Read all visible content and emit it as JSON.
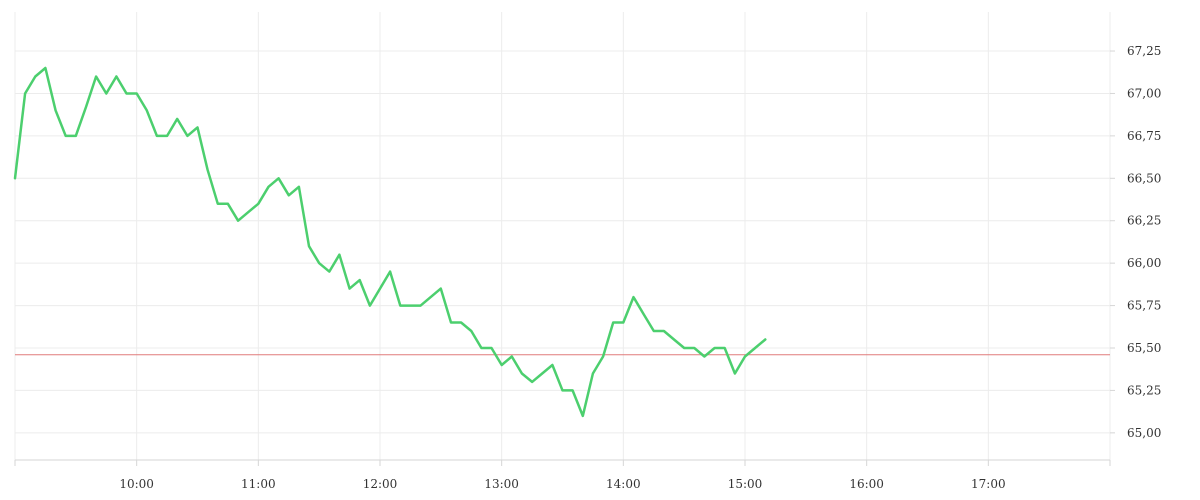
{
  "chart_data": {
    "type": "line",
    "x_format": "HH:MM",
    "xlim": [
      "09:00",
      "18:00"
    ],
    "ylim": [
      64.84,
      67.48
    ],
    "y_ticks": [
      "65,00",
      "65,25",
      "65,50",
      "65,75",
      "66,00",
      "66,25",
      "66,50",
      "66,75",
      "67,00",
      "67,25"
    ],
    "x_ticks": [
      "10:00",
      "11:00",
      "12:00",
      "13:00",
      "14:00",
      "15:00",
      "16:00",
      "17:00"
    ],
    "grid": true,
    "reference_line": {
      "value": 65.46,
      "color": "#e07b7b"
    },
    "series": [
      {
        "color": "#4ccf6e",
        "x": [
          "09:00",
          "09:05",
          "09:10",
          "09:15",
          "09:20",
          "09:25",
          "09:30",
          "09:35",
          "09:40",
          "09:45",
          "09:50",
          "09:55",
          "10:00",
          "10:05",
          "10:10",
          "10:15",
          "10:20",
          "10:25",
          "10:30",
          "10:35",
          "10:40",
          "10:45",
          "10:50",
          "10:55",
          "11:00",
          "11:05",
          "11:10",
          "11:15",
          "11:20",
          "11:25",
          "11:30",
          "11:35",
          "11:40",
          "11:45",
          "11:50",
          "11:55",
          "12:00",
          "12:05",
          "12:10",
          "12:15",
          "12:20",
          "12:25",
          "12:30",
          "12:35",
          "12:40",
          "12:45",
          "12:50",
          "12:55",
          "13:00",
          "13:05",
          "13:10",
          "13:15",
          "13:20",
          "13:25",
          "13:30",
          "13:35",
          "13:40",
          "13:45",
          "13:50",
          "13:55",
          "14:00",
          "14:05",
          "14:10",
          "14:15",
          "14:20",
          "14:25",
          "14:30",
          "14:35",
          "14:40",
          "14:45",
          "14:50",
          "14:55",
          "15:00",
          "15:05",
          "15:10"
        ],
        "values": [
          66.5,
          67.0,
          67.1,
          67.15,
          66.9,
          66.75,
          66.75,
          66.92,
          67.1,
          67.0,
          67.1,
          67.0,
          67.0,
          66.9,
          66.75,
          66.75,
          66.85,
          66.75,
          66.8,
          66.55,
          66.35,
          66.35,
          66.25,
          66.3,
          66.35,
          66.45,
          66.5,
          66.4,
          66.45,
          66.1,
          66.0,
          65.95,
          66.05,
          65.85,
          65.9,
          65.75,
          65.85,
          65.95,
          65.75,
          65.75,
          65.75,
          65.8,
          65.85,
          65.65,
          65.65,
          65.6,
          65.5,
          65.5,
          65.4,
          65.45,
          65.35,
          65.3,
          65.35,
          65.4,
          65.25,
          65.25,
          65.1,
          65.35,
          65.45,
          65.65,
          65.65,
          65.8,
          65.7,
          65.6,
          65.6,
          65.55,
          65.5,
          65.5,
          65.45,
          65.5,
          65.5,
          65.35,
          65.45,
          65.5,
          65.55
        ]
      }
    ]
  }
}
